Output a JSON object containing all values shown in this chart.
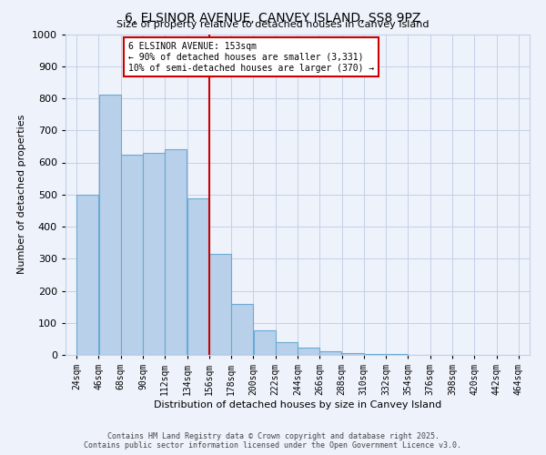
{
  "title": "6, ELSINOR AVENUE, CANVEY ISLAND, SS8 9PZ",
  "subtitle": "Size of property relative to detached houses in Canvey Island",
  "xlabel": "Distribution of detached houses by size in Canvey Island",
  "ylabel": "Number of detached properties",
  "bar_values": [
    500,
    810,
    625,
    630,
    640,
    487,
    315,
    160,
    78,
    40,
    22,
    10,
    5,
    3,
    2,
    1,
    1,
    0,
    0,
    0
  ],
  "bin_labels": [
    "24sqm",
    "46sqm",
    "68sqm",
    "90sqm",
    "112sqm",
    "134sqm",
    "156sqm",
    "178sqm",
    "200sqm",
    "222sqm",
    "244sqm",
    "266sqm",
    "288sqm",
    "310sqm",
    "332sqm",
    "354sqm",
    "376sqm",
    "398sqm",
    "420sqm",
    "442sqm",
    "464sqm"
  ],
  "bar_color": "#b8d0ea",
  "bar_edge_color": "#6aaad4",
  "vline_color": "#cc0000",
  "annotation_line1": "6 ELSINOR AVENUE: 153sqm",
  "annotation_line2": "← 90% of detached houses are smaller (3,331)",
  "annotation_line3": "10% of semi-detached houses are larger (370) →",
  "ylim": [
    0,
    1000
  ],
  "yticks": [
    0,
    100,
    200,
    300,
    400,
    500,
    600,
    700,
    800,
    900,
    1000
  ],
  "bg_color": "#eef2fb",
  "grid_color": "#c5cfe8",
  "footer_line1": "Contains HM Land Registry data © Crown copyright and database right 2025.",
  "footer_line2": "Contains public sector information licensed under the Open Government Licence v3.0."
}
